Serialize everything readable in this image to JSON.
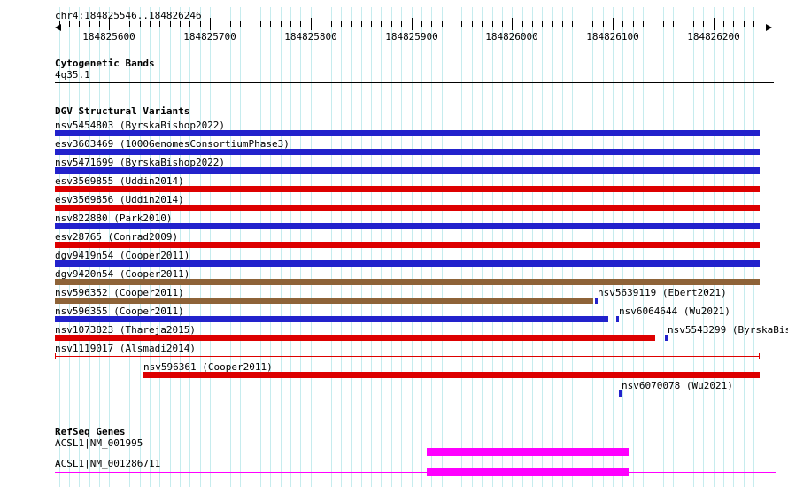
{
  "header": {
    "region": "chr4:184825546..184826246"
  },
  "ruler": {
    "start": 184825546,
    "end": 184826246,
    "minor_step": 10,
    "major_ticks": [
      184825600,
      184825700,
      184825800,
      184825900,
      184826000,
      184826100,
      184826200
    ]
  },
  "colors": {
    "blue": "#2222cc",
    "red": "#dd0000",
    "brown": "#8e6338",
    "magenta": "#ff00ff",
    "grid": "#c6ecee",
    "band": "#000000"
  },
  "sections": {
    "cyto": {
      "title": "Cytogenetic Bands",
      "band_label": "4q35.1"
    },
    "dgv": {
      "title": "DGV Structural Variants",
      "rows": [
        [
          {
            "label": "nsv5454803 (ByrskaBishop2022)",
            "glyph": "bar",
            "color": "blue",
            "start": 184825546,
            "end": 184826246
          }
        ],
        [
          {
            "label": "esv3603469 (1000GenomesConsortiumPhase3)",
            "glyph": "bar",
            "color": "blue",
            "start": 184825546,
            "end": 184826246
          }
        ],
        [
          {
            "label": "nsv5471699 (ByrskaBishop2022)",
            "glyph": "bar",
            "color": "blue",
            "start": 184825546,
            "end": 184826246
          }
        ],
        [
          {
            "label": "esv3569855 (Uddin2014)",
            "glyph": "bar",
            "color": "red",
            "start": 184825546,
            "end": 184826246
          }
        ],
        [
          {
            "label": "esv3569856 (Uddin2014)",
            "glyph": "bar",
            "color": "red",
            "start": 184825546,
            "end": 184826246
          }
        ],
        [
          {
            "label": "nsv822880 (Park2010)",
            "glyph": "bar",
            "color": "blue",
            "start": 184825546,
            "end": 184826246
          }
        ],
        [
          {
            "label": "esv28765 (Conrad2009)",
            "glyph": "bar",
            "color": "red",
            "start": 184825546,
            "end": 184826246
          }
        ],
        [
          {
            "label": "dgv9419n54 (Cooper2011)",
            "glyph": "bar",
            "color": "blue",
            "start": 184825546,
            "end": 184826246
          }
        ],
        [
          {
            "label": "dgv9420n54 (Cooper2011)",
            "glyph": "bar",
            "color": "brown",
            "start": 184825546,
            "end": 184826246
          }
        ],
        [
          {
            "label": "nsv596352 (Cooper2011)",
            "glyph": "bar",
            "color": "brown",
            "start": 184825546,
            "end": 184826081
          },
          {
            "label": "nsv5639119 (Ebert2021)",
            "glyph": "point",
            "color": "blue",
            "pos": 184826083
          }
        ],
        [
          {
            "label": "nsv596355 (Cooper2011)",
            "glyph": "bar",
            "color": "blue",
            "start": 184825546,
            "end": 184826096
          },
          {
            "label": "nsv6064644 (Wu2021)",
            "glyph": "point",
            "color": "blue",
            "pos": 184826104
          }
        ],
        [
          {
            "label": "nsv1073823 (Thareja2015)",
            "glyph": "bar",
            "color": "red",
            "start": 184825546,
            "end": 184826142
          },
          {
            "label": "nsv5543299 (ByrskaBishop2022)",
            "glyph": "point",
            "color": "blue",
            "pos": 184826153
          }
        ],
        [
          {
            "label": "nsv1119017 (Alsmadi2014)",
            "glyph": "segment",
            "color": "red",
            "start": 184825546,
            "end": 184826246
          }
        ],
        [
          {
            "label": "nsv596361 (Cooper2011)",
            "glyph": "bar",
            "color": "red",
            "start": 184825634,
            "end": 184826246
          }
        ],
        [
          {
            "label": "nsv6070078 (Wu2021)",
            "glyph": "point",
            "color": "blue",
            "pos": 184826107
          }
        ]
      ]
    },
    "refseq": {
      "title": "RefSeq Genes",
      "rows": [
        {
          "label": "ACSL1|NM_001995",
          "box_start": 184825915,
          "box_end": 184826116
        },
        {
          "label": "ACSL1|NM_001286711",
          "box_start": 184825915,
          "box_end": 184826116
        }
      ]
    }
  }
}
